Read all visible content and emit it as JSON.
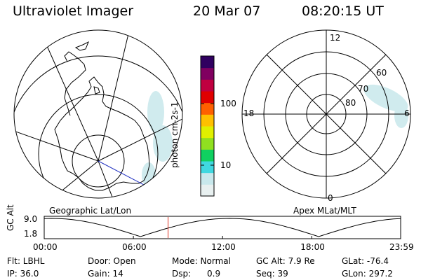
{
  "header": {
    "title": "Ultraviolet Imager",
    "date": "20 Mar 07",
    "time": "08:20:15 UT"
  },
  "left_map": {
    "caption": "Geographic Lat/Lon"
  },
  "colorbar": {
    "units": "photon cm-2s-1",
    "tick_100": "100",
    "tick_10": "10",
    "colors": [
      "#e8f0f0",
      "#c8e8ec",
      "#40d8e0",
      "#10d060",
      "#90e020",
      "#e0f000",
      "#ffc000",
      "#ff6000",
      "#e00000",
      "#c00040",
      "#800060",
      "#300060"
    ]
  },
  "right_map": {
    "caption": "Apex MLat/MLT",
    "mlt_12": "12",
    "mlt_18": "18",
    "mlt_6": "6",
    "mlt_0": "0",
    "lat_60": "60",
    "lat_70": "70",
    "lat_80": "80"
  },
  "timeline": {
    "ylabel": "GC Alt",
    "ytick_top": "9.0",
    "ytick_bottom": "1.8",
    "xticks": [
      "00:00",
      "06:00",
      "12:00",
      "18:00",
      "23:59"
    ],
    "marker_time": "08:20"
  },
  "info": {
    "flt": "Flt: LBHL",
    "door": "Door: Open",
    "mode": "Mode: Normal",
    "gc_alt": "GC Alt: 7.9 Re",
    "glat": "GLat: -76.4",
    "ip": "IP: 36.0",
    "gain": "Gain: 14",
    "dsp": "Dsp:      0.9",
    "seq": "Seq: 39",
    "glon": "GLon: 297.2"
  }
}
